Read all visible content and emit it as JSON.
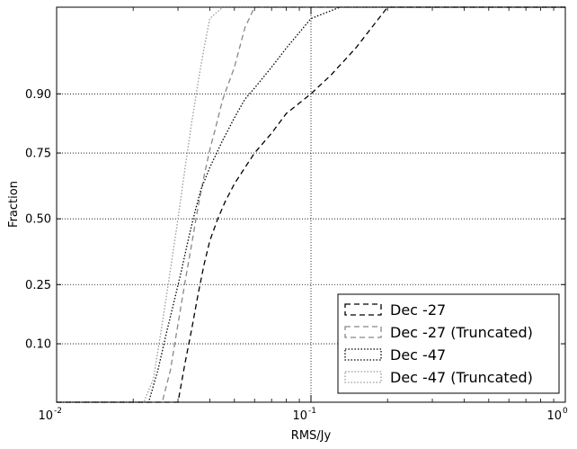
{
  "chart_data": {
    "type": "line",
    "title": "",
    "xlabel": "RMS/Jy",
    "ylabel": "Fraction",
    "x_scale": "log",
    "y_scale": "normal-probability",
    "xlim": [
      0.01,
      1.0
    ],
    "ylim": [
      0.0,
      1.0
    ],
    "x_ticks": [
      {
        "value": 0.01,
        "base": "10",
        "exp": "-2"
      },
      {
        "value": 0.1,
        "base": "10",
        "exp": "-1"
      },
      {
        "value": 1.0,
        "base": "10",
        "exp": "0"
      }
    ],
    "y_ticks": [
      {
        "value": 0.1,
        "label": "0.10"
      },
      {
        "value": 0.25,
        "label": "0.25"
      },
      {
        "value": 0.5,
        "label": "0.50"
      },
      {
        "value": 0.75,
        "label": "0.75"
      },
      {
        "value": 0.9,
        "label": "0.90"
      }
    ],
    "grid": true,
    "legend_position": "bottom-right",
    "series": [
      {
        "name": "Dec -27",
        "color": "#000000",
        "dash": "dashed",
        "x": [
          0.01,
          0.024,
          0.026,
          0.028,
          0.03,
          0.032,
          0.034,
          0.036,
          0.038,
          0.04,
          0.043,
          0.046,
          0.05,
          0.055,
          0.06,
          0.07,
          0.08,
          0.1,
          0.12,
          0.15,
          0.2,
          0.25,
          0.3,
          1.0
        ],
        "values": [
          0.0,
          0.0,
          0.003,
          0.01,
          0.03,
          0.07,
          0.13,
          0.22,
          0.32,
          0.41,
          0.5,
          0.57,
          0.64,
          0.7,
          0.75,
          0.81,
          0.86,
          0.9,
          0.93,
          0.96,
          0.985,
          0.995,
          1.0,
          1.0
        ]
      },
      {
        "name": "Dec -27 (Truncated)",
        "color": "#888888",
        "dash": "dashed",
        "x": [
          0.01,
          0.022,
          0.024,
          0.026,
          0.028,
          0.03,
          0.032,
          0.034,
          0.036,
          0.038,
          0.04,
          0.042,
          0.045,
          0.05,
          0.055,
          0.06,
          0.07,
          1.0
        ],
        "values": [
          0.0,
          0.0,
          0.005,
          0.02,
          0.06,
          0.14,
          0.26,
          0.4,
          0.55,
          0.67,
          0.76,
          0.82,
          0.89,
          0.94,
          0.975,
          0.99,
          1.0,
          1.0
        ]
      },
      {
        "name": "Dec -47",
        "color": "#000000",
        "dash": "dotted",
        "x": [
          0.01,
          0.021,
          0.023,
          0.025,
          0.027,
          0.029,
          0.031,
          0.033,
          0.035,
          0.037,
          0.04,
          0.045,
          0.05,
          0.055,
          0.06,
          0.07,
          0.08,
          0.1,
          0.13,
          0.17,
          0.22,
          1.0
        ],
        "values": [
          0.0,
          0.0,
          0.02,
          0.06,
          0.12,
          0.2,
          0.3,
          0.42,
          0.53,
          0.62,
          0.7,
          0.79,
          0.85,
          0.89,
          0.91,
          0.94,
          0.96,
          0.98,
          0.992,
          0.998,
          1.0,
          1.0
        ]
      },
      {
        "name": "Dec -47 (Truncated)",
        "color": "#999999",
        "dash": "dotted",
        "x": [
          0.01,
          0.02,
          0.022,
          0.024,
          0.026,
          0.028,
          0.03,
          0.032,
          0.034,
          0.036,
          0.038,
          0.04,
          0.045,
          0.05,
          0.055,
          1.0
        ],
        "values": [
          0.0,
          0.0,
          0.01,
          0.05,
          0.14,
          0.3,
          0.5,
          0.7,
          0.84,
          0.92,
          0.96,
          0.98,
          0.995,
          1.0,
          1.0,
          1.0
        ]
      }
    ]
  }
}
